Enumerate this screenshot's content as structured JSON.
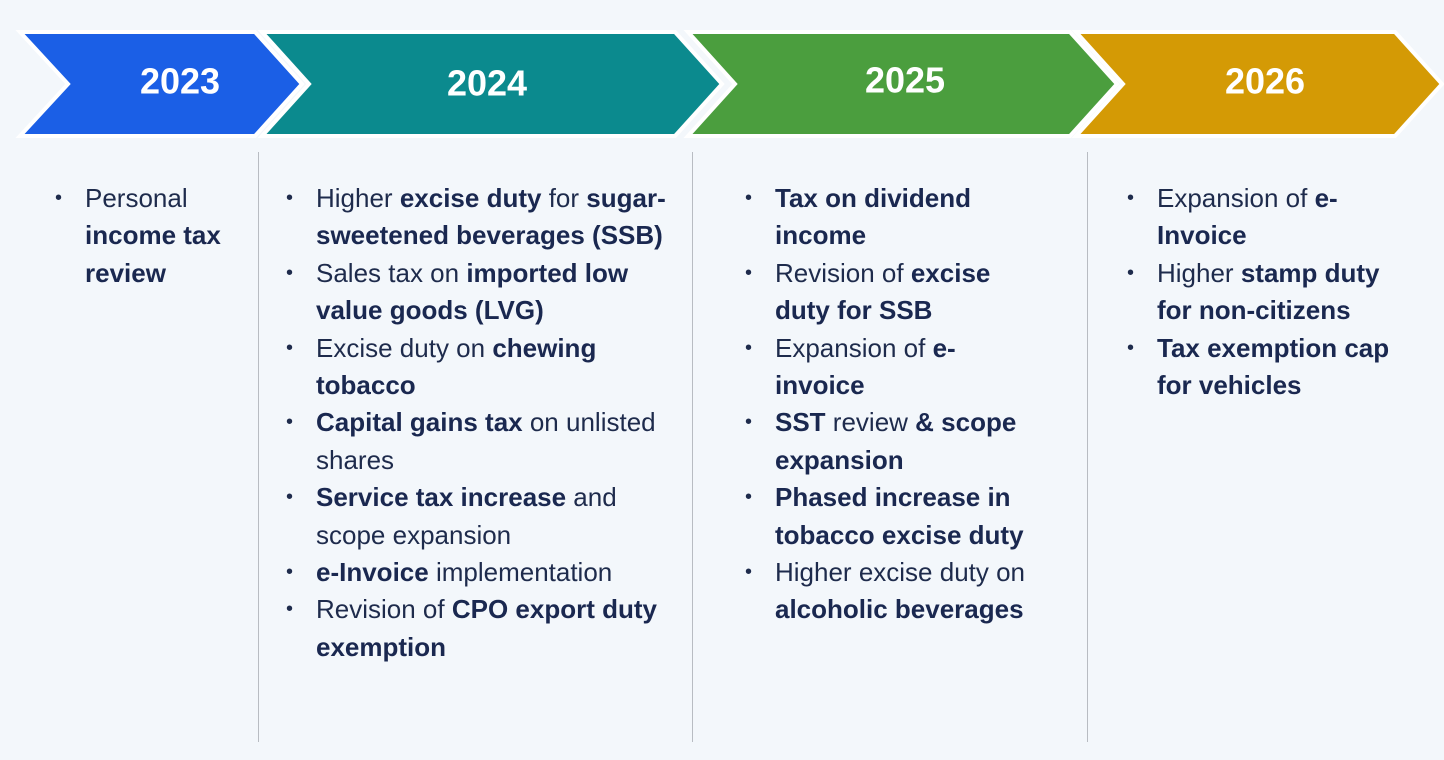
{
  "columns": [
    {
      "year": "2023",
      "color": "#1b5fe6",
      "items": [
        [
          {
            "text": "Personal ",
            "bold": false
          },
          {
            "text": "income tax review",
            "bold": true
          }
        ]
      ]
    },
    {
      "year": "2024",
      "color": "#0b8a8e",
      "items": [
        [
          {
            "text": "Higher ",
            "bold": false
          },
          {
            "text": "excise duty",
            "bold": true
          },
          {
            "text": " for ",
            "bold": false
          },
          {
            "text": "sugar-sweetened beverages (SSB)",
            "bold": true
          }
        ],
        [
          {
            "text": "Sales tax on ",
            "bold": false
          },
          {
            "text": "imported low value goods (LVG)",
            "bold": true
          }
        ],
        [
          {
            "text": "Excise duty on ",
            "bold": false
          },
          {
            "text": "chewing tobacco",
            "bold": true
          }
        ],
        [
          {
            "text": "Capital gains tax",
            "bold": true
          },
          {
            "text": " on unlisted shares",
            "bold": false
          }
        ],
        [
          {
            "text": "Service tax increase",
            "bold": true
          },
          {
            "text": " and scope expansion",
            "bold": false
          }
        ],
        [
          {
            "text": "e-Invoice",
            "bold": true
          },
          {
            "text": " implementation",
            "bold": false
          }
        ],
        [
          {
            "text": "Revision of ",
            "bold": false
          },
          {
            "text": "CPO export duty exemption",
            "bold": true
          }
        ]
      ]
    },
    {
      "year": "2025",
      "color": "#4b9e3e",
      "items": [
        [
          {
            "text": "Tax on dividend income",
            "bold": true
          }
        ],
        [
          {
            "text": "Revision of ",
            "bold": false
          },
          {
            "text": "excise duty for SSB",
            "bold": true
          }
        ],
        [
          {
            "text": "Expansion of ",
            "bold": false
          },
          {
            "text": "e-invoice",
            "bold": true
          }
        ],
        [
          {
            "text": "SST",
            "bold": true
          },
          {
            "text": " review ",
            "bold": false
          },
          {
            "text": "& scope expansion",
            "bold": true
          }
        ],
        [
          {
            "text": "Phased increase in tobacco excise duty",
            "bold": true
          }
        ],
        [
          {
            "text": "Higher excise duty on ",
            "bold": false
          },
          {
            "text": "alcoholic beverages",
            "bold": true
          }
        ]
      ]
    },
    {
      "year": "2026",
      "color": "#d49a05",
      "items": [
        [
          {
            "text": "Expansion of ",
            "bold": false
          },
          {
            "text": "e-Invoice",
            "bold": true
          }
        ],
        [
          {
            "text": "Higher ",
            "bold": false
          },
          {
            "text": "stamp duty for non-citizens",
            "bold": true
          }
        ],
        [
          {
            "text": "Tax exemption cap for vehicles",
            "bold": true
          }
        ]
      ]
    }
  ]
}
